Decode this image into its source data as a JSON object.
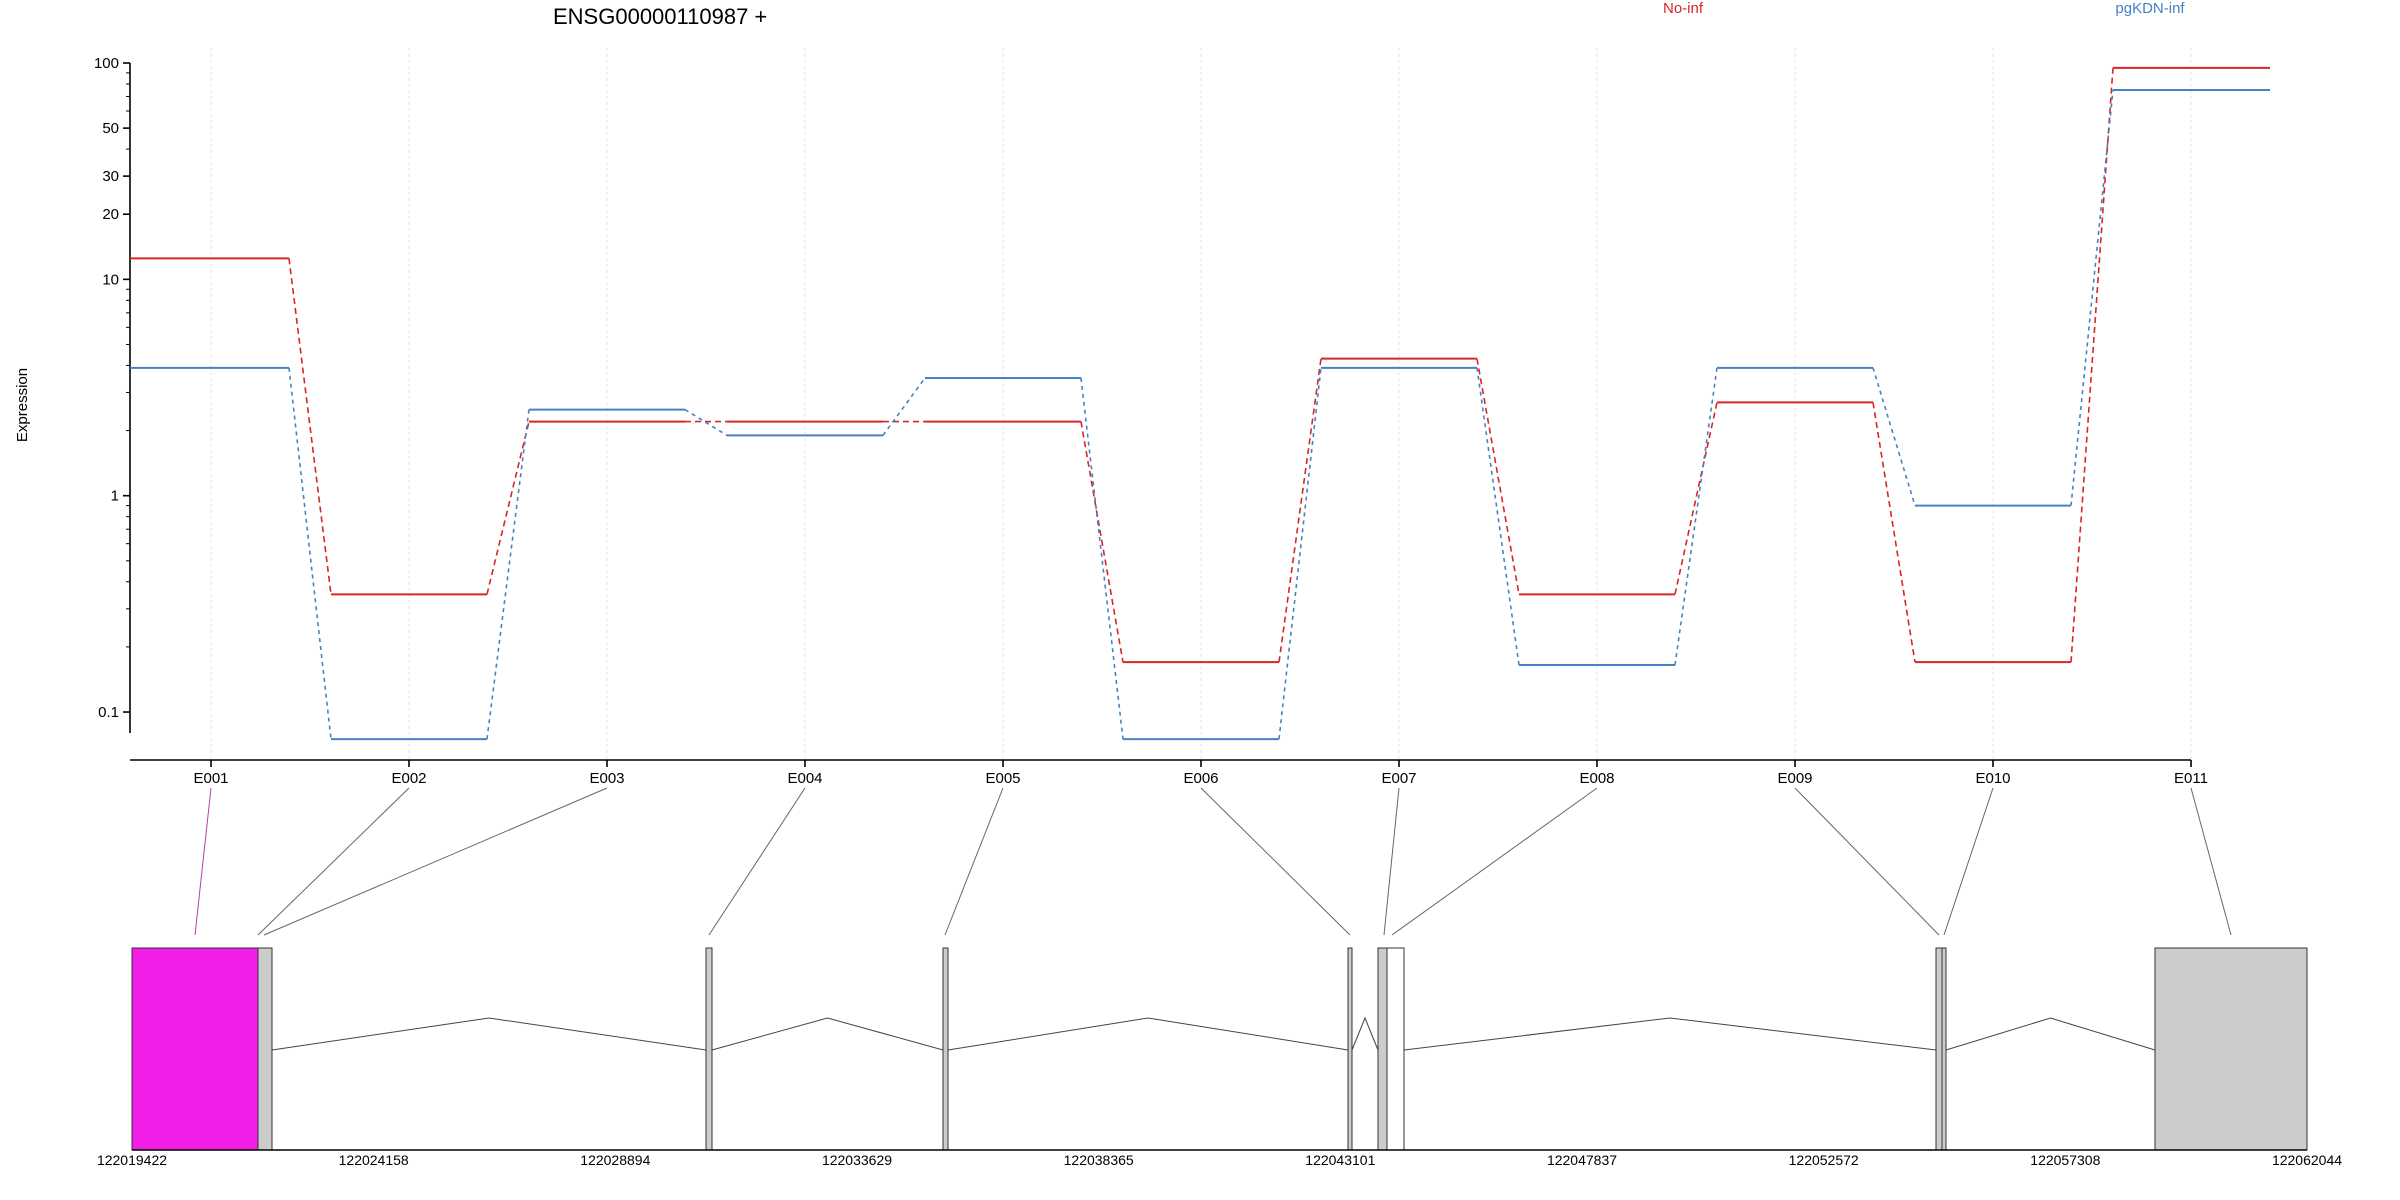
{
  "chart_data": {
    "type": "line",
    "title": "ENSG00000110987 +",
    "ylabel": "Expression",
    "xlabel": "",
    "yscale": "log",
    "ylim": [
      0.08,
      100
    ],
    "yticks": [
      {
        "value": 0.1,
        "label": "0.1"
      },
      {
        "value": 1,
        "label": "1"
      },
      {
        "value": 10,
        "label": "10"
      },
      {
        "value": 20,
        "label": "20"
      },
      {
        "value": 30,
        "label": "30"
      },
      {
        "value": 50,
        "label": "50"
      },
      {
        "value": 100,
        "label": "100"
      }
    ],
    "categories": [
      "E001",
      "E002",
      "E003",
      "E004",
      "E005",
      "E006",
      "E007",
      "E008",
      "E009",
      "E010",
      "E011"
    ],
    "grid": "vertical",
    "legend_position": "top-right",
    "series": [
      {
        "name": "No-inf",
        "color": "#d62728",
        "values": [
          12.5,
          0.35,
          2.2,
          2.2,
          2.2,
          0.17,
          4.3,
          0.35,
          2.7,
          0.17,
          95
        ]
      },
      {
        "name": "pgKDN-inf",
        "color": "#4682c3",
        "values": [
          3.9,
          0.075,
          2.5,
          1.9,
          3.5,
          0.075,
          3.9,
          0.165,
          3.9,
          0.9,
          75
        ]
      }
    ]
  },
  "gene_model": {
    "coordinates": [
      "122019422",
      "122024158",
      "122028894",
      "122033629",
      "122038365",
      "122043101",
      "122047837",
      "122052572",
      "122057308",
      "122062044"
    ],
    "colors": {
      "highlight": "#f21de6",
      "exon": "#cccccc",
      "connector_highlight": "#b040b0"
    }
  }
}
